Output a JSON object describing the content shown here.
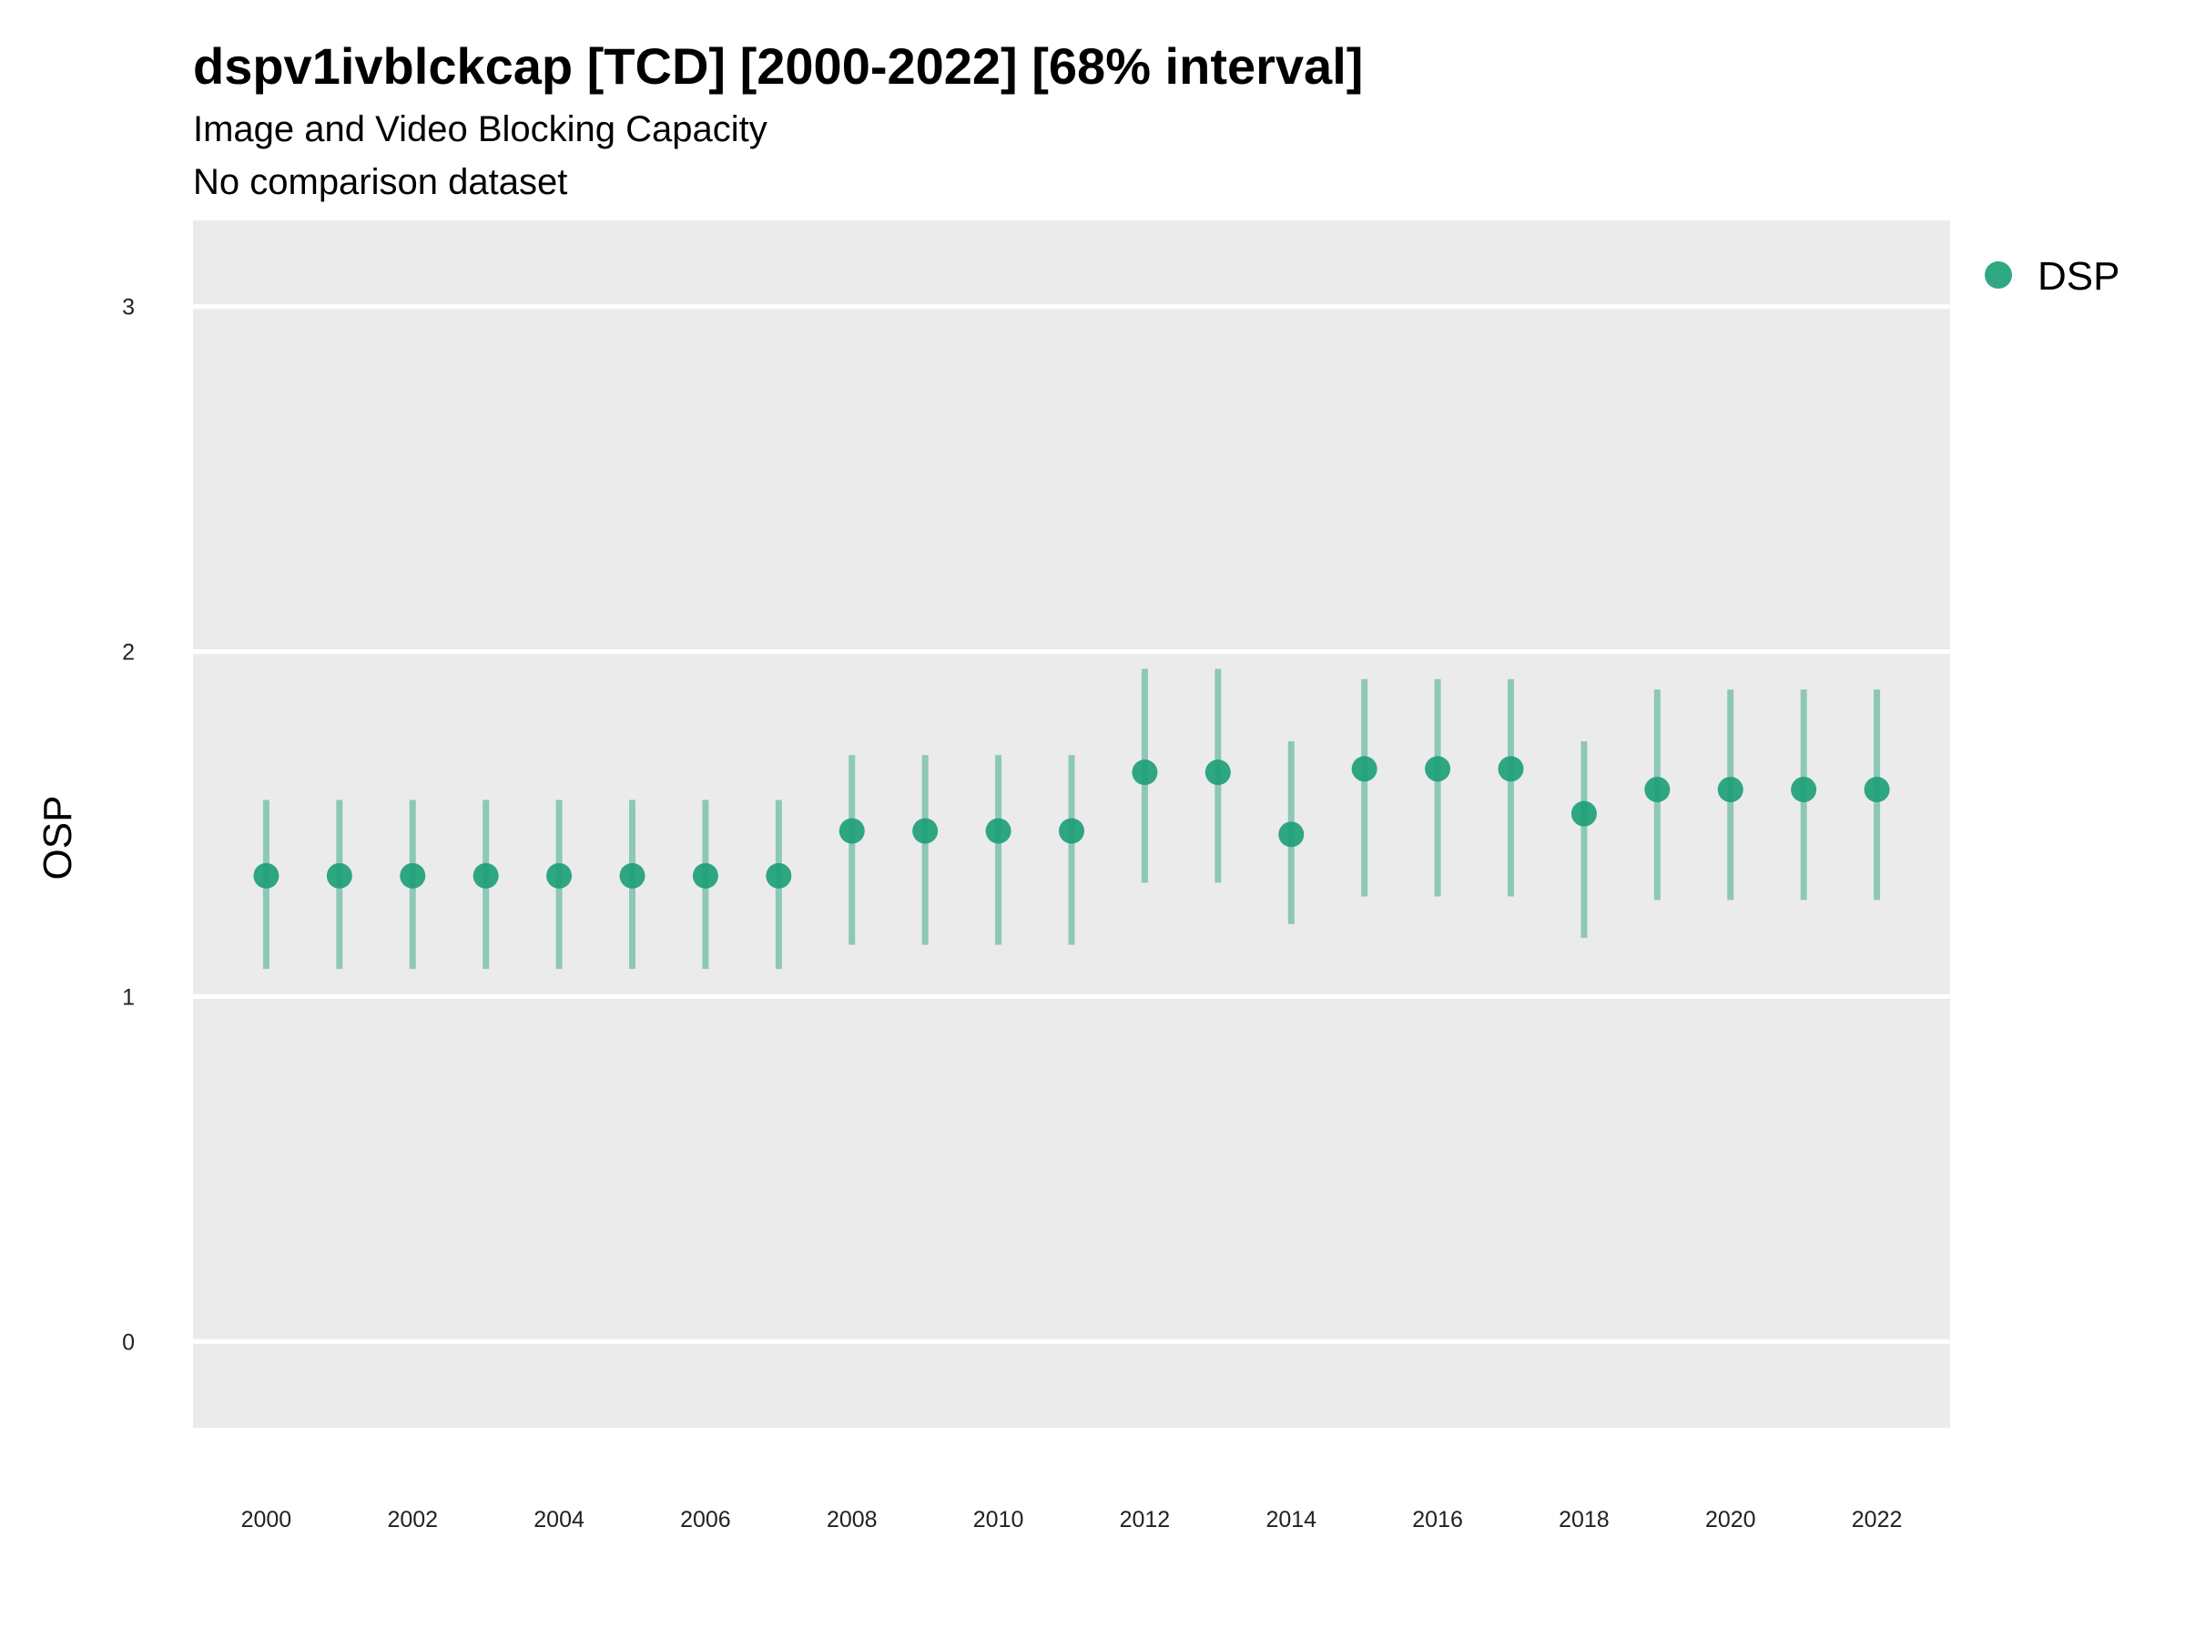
{
  "chart_data": {
    "type": "scatter",
    "title": "dspv1ivblckcap [TCD] [2000-2022] [68% interval]",
    "subtitle": "Image and Video Blocking Capacity",
    "caption": "No comparison dataset",
    "xlabel": "",
    "ylabel": "OSP",
    "xlim": [
      1999,
      2023
    ],
    "ylim": [
      -0.25,
      3.25
    ],
    "x_ticks": [
      2000,
      2002,
      2004,
      2006,
      2008,
      2010,
      2012,
      2014,
      2016,
      2018,
      2020,
      2022
    ],
    "y_ticks": [
      0,
      1,
      2,
      3
    ],
    "grid": true,
    "legend": {
      "position": "right",
      "entries": [
        "DSP"
      ]
    },
    "colors": {
      "point": "#1b9e77",
      "panel": "#ebebeb",
      "grid": "#ffffff"
    },
    "series": [
      {
        "name": "DSP",
        "x": [
          2000,
          2001,
          2002,
          2003,
          2004,
          2005,
          2006,
          2007,
          2008,
          2009,
          2010,
          2011,
          2012,
          2013,
          2014,
          2015,
          2016,
          2017,
          2018,
          2019,
          2020,
          2021,
          2022
        ],
        "y": [
          1.35,
          1.35,
          1.35,
          1.35,
          1.35,
          1.35,
          1.35,
          1.35,
          1.48,
          1.48,
          1.48,
          1.48,
          1.65,
          1.65,
          1.47,
          1.66,
          1.66,
          1.66,
          1.53,
          1.6,
          1.6,
          1.6,
          1.6
        ],
        "lower": [
          1.08,
          1.08,
          1.08,
          1.08,
          1.08,
          1.08,
          1.08,
          1.08,
          1.15,
          1.15,
          1.15,
          1.15,
          1.33,
          1.33,
          1.21,
          1.29,
          1.29,
          1.29,
          1.17,
          1.28,
          1.28,
          1.28,
          1.28
        ],
        "upper": [
          1.57,
          1.57,
          1.57,
          1.57,
          1.57,
          1.57,
          1.57,
          1.57,
          1.7,
          1.7,
          1.7,
          1.7,
          1.95,
          1.95,
          1.74,
          1.92,
          1.92,
          1.92,
          1.74,
          1.89,
          1.89,
          1.89,
          1.89
        ]
      }
    ]
  }
}
